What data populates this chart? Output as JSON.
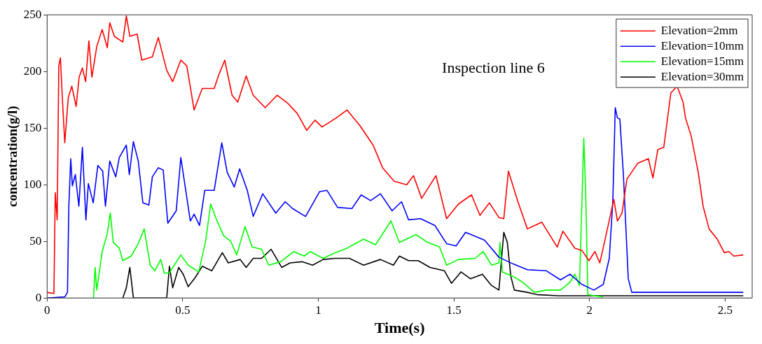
{
  "chart_data": {
    "type": "line",
    "xlabel": "Time(s)",
    "ylabel": "concentration(g/l)",
    "annotations": [
      "Inspection line 6"
    ],
    "xlim": [
      0,
      2.6
    ],
    "xticks": [
      0,
      0.5,
      1,
      1.5,
      2,
      2.5
    ],
    "ylim": [
      0,
      250
    ],
    "yticks": [
      0,
      50,
      100,
      150,
      200,
      250
    ],
    "grid": false,
    "legend": "top right",
    "marker": "none",
    "line_style": "solid",
    "series": [
      {
        "name": "Elevation=2mm",
        "color": "#ff0000",
        "x": [
          0,
          0.025,
          0.03,
          0.037,
          0.043,
          0.049,
          0.056,
          0.065,
          0.078,
          0.091,
          0.107,
          0.118,
          0.13,
          0.142,
          0.154,
          0.165,
          0.183,
          0.203,
          0.222,
          0.231,
          0.248,
          0.279,
          0.292,
          0.305,
          0.332,
          0.349,
          0.388,
          0.41,
          0.441,
          0.463,
          0.493,
          0.515,
          0.542,
          0.572,
          0.616,
          0.633,
          0.655,
          0.682,
          0.703,
          0.734,
          0.76,
          0.804,
          0.848,
          0.887,
          0.922,
          0.957,
          0.988,
          1.014,
          1.066,
          1.106,
          1.154,
          1.202,
          1.237,
          1.28,
          1.326,
          1.351,
          1.381,
          1.434,
          1.473,
          1.517,
          1.565,
          1.596,
          1.631,
          1.666,
          1.684,
          1.701,
          1.736,
          1.771,
          1.824,
          1.881,
          1.902,
          1.946,
          1.972,
          1.998,
          2.02,
          2.038,
          2.055,
          2.077,
          2.09,
          2.103,
          2.12,
          2.138,
          2.178,
          2.217,
          2.234,
          2.252,
          2.274,
          2.3,
          2.323,
          2.345,
          2.354,
          2.375,
          2.401,
          2.419,
          2.441,
          2.471,
          2.497,
          2.514,
          2.532,
          2.567
        ],
        "values": [
          5,
          4,
          93,
          69,
          205,
          212,
          177,
          137,
          177,
          187,
          169,
          195,
          203,
          191,
          227,
          195,
          222,
          237,
          221,
          243,
          231,
          226,
          249,
          231,
          233,
          210,
          213,
          230,
          201,
          191,
          210,
          205,
          166,
          185,
          185,
          197,
          210,
          179,
          173,
          196,
          179,
          168,
          179,
          172,
          163,
          148,
          157,
          151,
          159,
          166,
          152,
          135,
          115,
          103,
          100,
          108,
          88,
          108,
          70,
          83,
          91,
          73,
          84,
          71,
          70,
          112,
          85,
          61,
          67,
          45,
          59,
          44,
          42,
          33,
          41,
          31,
          49,
          73,
          87,
          68,
          75,
          105,
          119,
          123,
          106,
          131,
          133,
          181,
          187,
          173,
          159,
          143,
          111,
          81,
          61,
          52,
          40,
          41,
          37,
          38
        ]
      },
      {
        "name": "Elevation=10mm",
        "color": "#0000ff",
        "x": [
          0,
          0.065,
          0.075,
          0.08,
          0.087,
          0.093,
          0.104,
          0.117,
          0.13,
          0.143,
          0.152,
          0.17,
          0.187,
          0.205,
          0.215,
          0.231,
          0.253,
          0.266,
          0.292,
          0.303,
          0.318,
          0.336,
          0.353,
          0.375,
          0.388,
          0.41,
          0.428,
          0.445,
          0.476,
          0.493,
          0.528,
          0.542,
          0.562,
          0.581,
          0.616,
          0.644,
          0.664,
          0.69,
          0.71,
          0.738,
          0.76,
          0.795,
          0.843,
          0.878,
          0.905,
          0.953,
          1.005,
          1.032,
          1.071,
          1.124,
          1.158,
          1.193,
          1.229,
          1.272,
          1.307,
          1.333,
          1.377,
          1.43,
          1.473,
          1.508,
          1.543,
          1.613,
          1.666,
          1.719,
          1.771,
          1.841,
          1.893,
          1.928,
          1.972,
          2.016,
          2.051,
          2.073,
          2.086,
          2.095,
          2.103,
          2.112,
          2.125,
          2.143,
          2.156,
          2.191,
          2.567
        ],
        "values": [
          0,
          1,
          5,
          81,
          123,
          99,
          109,
          81,
          133,
          69,
          101,
          84,
          117,
          112,
          81,
          121,
          107,
          124,
          135,
          109,
          138,
          121,
          84,
          82,
          107,
          115,
          113,
          66,
          77,
          124,
          68,
          74,
          64,
          95,
          95,
          137,
          111,
          98,
          114,
          95,
          72,
          92,
          75,
          85,
          79,
          72,
          94,
          95,
          80,
          79,
          91,
          86,
          92,
          77,
          85,
          69,
          70,
          64,
          48,
          46,
          58,
          51,
          36,
          30,
          25,
          24,
          16,
          21,
          12,
          7,
          12,
          35,
          85,
          168,
          159,
          158,
          109,
          17,
          5,
          5,
          5
        ]
      },
      {
        "name": "Elevation=15mm",
        "color": "#00ff00",
        "x": [
          0.171,
          0.177,
          0.183,
          0.203,
          0.222,
          0.233,
          0.244,
          0.266,
          0.279,
          0.31,
          0.336,
          0.358,
          0.38,
          0.397,
          0.419,
          0.432,
          0.45,
          0.493,
          0.52,
          0.559,
          0.585,
          0.603,
          0.625,
          0.651,
          0.677,
          0.699,
          0.73,
          0.756,
          0.791,
          0.817,
          0.861,
          0.909,
          0.948,
          0.97,
          1.018,
          1.053,
          1.106,
          1.167,
          1.211,
          1.268,
          1.299,
          1.36,
          1.404,
          1.447,
          1.473,
          1.517,
          1.578,
          1.608,
          1.639,
          1.666,
          1.67,
          1.679,
          1.719,
          1.753,
          1.797,
          1.841,
          1.893,
          1.928,
          1.946,
          1.963,
          1.979,
          1.986,
          1.994,
          2.016,
          2.05
        ],
        "values": [
          0,
          27,
          7,
          41,
          57,
          75,
          49,
          44,
          33,
          37,
          48,
          61,
          29,
          24,
          34,
          22,
          22,
          38,
          29,
          23,
          51,
          83,
          69,
          55,
          50,
          38,
          63,
          45,
          43,
          29,
          32,
          41,
          37,
          41,
          35,
          39,
          44,
          52,
          47,
          68,
          49,
          56,
          49,
          45,
          29,
          34,
          35,
          41,
          29,
          31,
          49,
          23,
          19,
          14,
          5,
          7,
          7,
          14,
          21,
          11,
          141,
          93,
          3,
          2,
          1
        ]
      },
      {
        "name": "Elevation=30mm",
        "color": "#000000",
        "x": [
          0.279,
          0.292,
          0.305,
          0.318,
          0.441,
          0.451,
          0.463,
          0.485,
          0.502,
          0.52,
          0.546,
          0.572,
          0.607,
          0.646,
          0.668,
          0.712,
          0.734,
          0.76,
          0.791,
          0.826,
          0.865,
          0.896,
          0.94,
          0.979,
          1.018,
          1.062,
          1.115,
          1.167,
          1.229,
          1.277,
          1.299,
          1.333,
          1.368,
          1.412,
          1.465,
          1.491,
          1.526,
          1.561,
          1.605,
          1.639,
          1.666,
          1.684,
          1.697,
          1.71,
          1.723,
          1.771,
          1.806,
          1.885,
          2.567
        ],
        "values": [
          0,
          9,
          27,
          0,
          0,
          28,
          9,
          27,
          21,
          10,
          18,
          28,
          24,
          40,
          31,
          34,
          27,
          35,
          35,
          43,
          27,
          31,
          32,
          29,
          34,
          35,
          35,
          29,
          34,
          29,
          37,
          33,
          33,
          27,
          24,
          13,
          23,
          17,
          21,
          11,
          7,
          58,
          49,
          19,
          7,
          5,
          3,
          2,
          2
        ]
      }
    ]
  }
}
